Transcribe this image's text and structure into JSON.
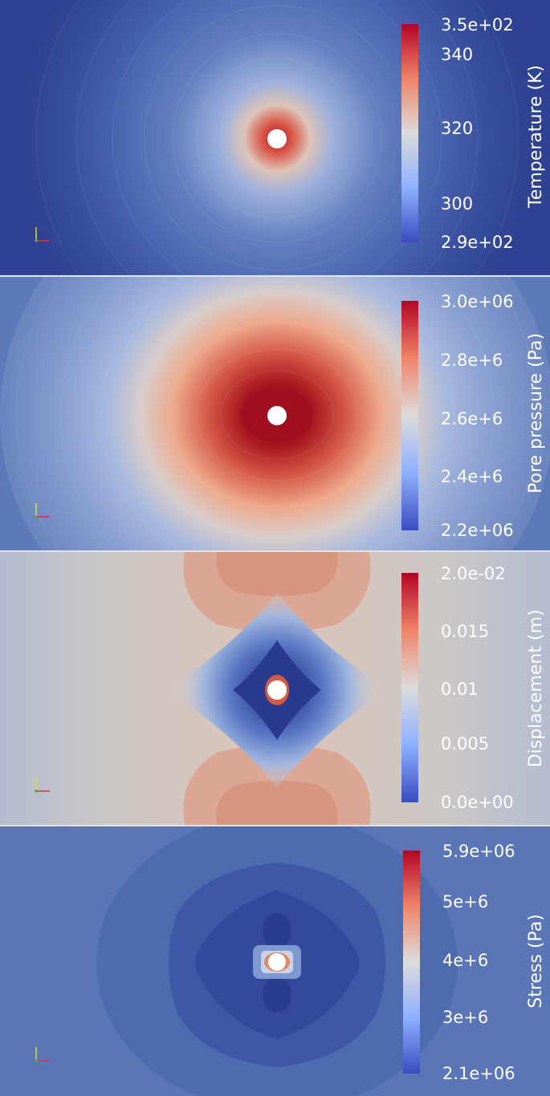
{
  "panels": [
    {
      "id": "temperature",
      "title": "Temperature (K)",
      "ticks": [
        "3.5e+02",
        "340",
        "320",
        "300",
        "2.9e+02"
      ],
      "colors": {
        "background": "#2e4192",
        "center": "#b40d1f",
        "outer": "#4a66b0"
      }
    },
    {
      "id": "pore-pressure",
      "title": "Pore pressure (Pa)",
      "ticks": [
        "3.0e+06",
        "2.8e+6",
        "2.6e+6",
        "2.4e+6",
        "2.2e+06"
      ],
      "colors": {
        "background": "#5c7ab8",
        "center": "#a00f1f",
        "outer": "#6c86bf"
      }
    },
    {
      "id": "displacement",
      "title": "Displacement (m)",
      "ticks": [
        "2.0e-02",
        "0.015",
        "0.01",
        "0.005",
        "0.0e+00"
      ],
      "colors": {
        "background": "#b9bec9",
        "center": "#2a3a8e",
        "outer": "#d4a391"
      }
    },
    {
      "id": "stress",
      "title": "Stress (Pa)",
      "ticks": [
        "5.9e+06",
        "5e+6",
        "4e+6",
        "3e+6",
        "2.1e+06"
      ],
      "colors": {
        "background": "#5a76b6",
        "center": "#30459a",
        "outer": "#5572b4"
      }
    }
  ]
}
